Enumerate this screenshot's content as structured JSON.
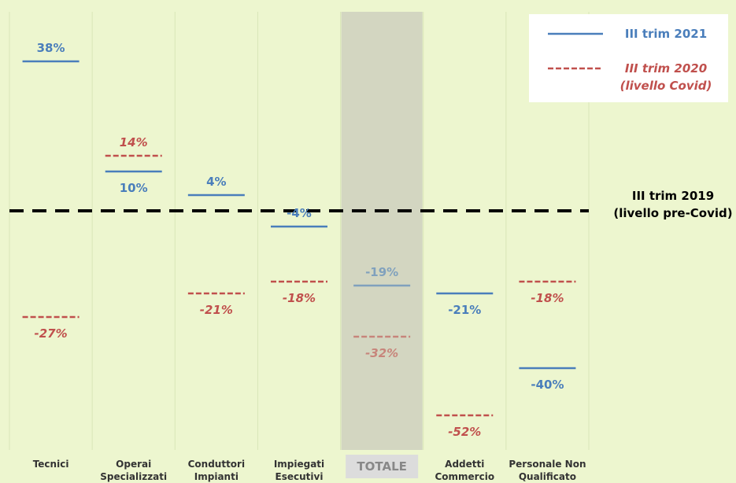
{
  "chart_data": {
    "type": "level",
    "categories": [
      "Tecnici",
      "Operai\nSpecializzati",
      "Conduttori\nImpianti",
      "Impiegati\nEsecutivi",
      "TOTALE",
      "Addetti\nCommercio",
      "Personale Non\nQualificato"
    ],
    "highlight": 4,
    "series": [
      {
        "name": "III trim 2021",
        "color": "#4a7ebb",
        "style": "solid",
        "values": [
          38,
          10,
          4,
          -4,
          -19,
          -21,
          -40
        ],
        "value_labels": [
          "38%",
          "10%",
          "4%",
          "-4%",
          "-19%",
          "-21%",
          "-40%"
        ]
      },
      {
        "name": "III trim 2020\n(livello Covid)",
        "color": "#c0504d",
        "style": "dashed",
        "values": [
          -27,
          14,
          -21,
          -18,
          -32,
          -52,
          -18
        ],
        "value_labels": [
          "-27%",
          "14%",
          "-21%",
          "-18%",
          "-32%",
          "-52%",
          "-18%"
        ]
      }
    ],
    "reference_line": {
      "value": 0,
      "label": "III trim 2019\n(livello pre-Covid)"
    },
    "ylim": [
      -60,
      50
    ]
  }
}
